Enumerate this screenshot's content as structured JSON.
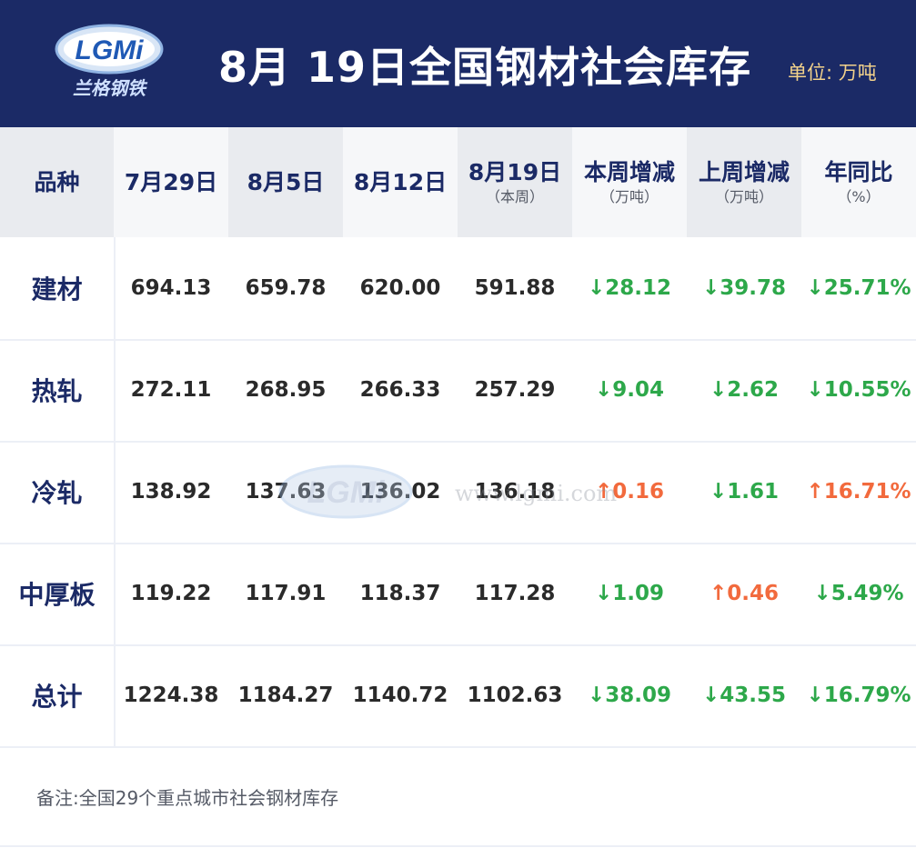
{
  "header": {
    "title": "8月 19日全国钢材社会库存",
    "unit": "单位: 万吨",
    "logo_text": "LGMi",
    "logo_subtext": "兰格钢铁"
  },
  "columns": [
    {
      "main": "品种",
      "sub": ""
    },
    {
      "main": "7月29日",
      "sub": ""
    },
    {
      "main": "8月5日",
      "sub": ""
    },
    {
      "main": "8月12日",
      "sub": ""
    },
    {
      "main": "8月19日",
      "sub": "（本周）"
    },
    {
      "main": "本周增减",
      "sub": "（万吨）"
    },
    {
      "main": "上周增减",
      "sub": "（万吨）"
    },
    {
      "main": "年同比",
      "sub": "（%）"
    }
  ],
  "rows": [
    {
      "category": "建材",
      "v1": "694.13",
      "v2": "659.78",
      "v3": "620.00",
      "v4": "591.88",
      "week_change": "↓28.12",
      "week_dir": "down",
      "last_week_change": "↓39.78",
      "last_week_dir": "down",
      "yoy": "↓25.71%",
      "yoy_dir": "down"
    },
    {
      "category": "热轧",
      "v1": "272.11",
      "v2": "268.95",
      "v3": "266.33",
      "v4": "257.29",
      "week_change": "↓9.04",
      "week_dir": "down",
      "last_week_change": "↓2.62",
      "last_week_dir": "down",
      "yoy": "↓10.55%",
      "yoy_dir": "down"
    },
    {
      "category": "冷轧",
      "v1": "138.92",
      "v2": "137.63",
      "v3": "136.02",
      "v4": "136.18",
      "week_change": "↑0.16",
      "week_dir": "up",
      "last_week_change": "↓1.61",
      "last_week_dir": "down",
      "yoy": "↑16.71%",
      "yoy_dir": "up"
    },
    {
      "category": "中厚板",
      "v1": "119.22",
      "v2": "117.91",
      "v3": "118.37",
      "v4": "117.28",
      "week_change": "↓1.09",
      "week_dir": "down",
      "last_week_change": "↑0.46",
      "last_week_dir": "up",
      "yoy": "↓5.49%",
      "yoy_dir": "down"
    },
    {
      "category": "总计",
      "v1": "1224.38",
      "v2": "1184.27",
      "v3": "1140.72",
      "v4": "1102.63",
      "week_change": "↓38.09",
      "week_dir": "down",
      "last_week_change": "↓43.55",
      "last_week_dir": "down",
      "yoy": "↓16.79%",
      "yoy_dir": "down"
    }
  ],
  "watermark": {
    "logo_text": "LGMi",
    "text": "www.lgmi.com"
  },
  "note": "备注:全国29个重点城市社会钢材库存",
  "colors": {
    "header_bg": "#1b2a66",
    "unit": "#f3d28b",
    "down": "#2da84a",
    "up": "#f26a3d"
  }
}
